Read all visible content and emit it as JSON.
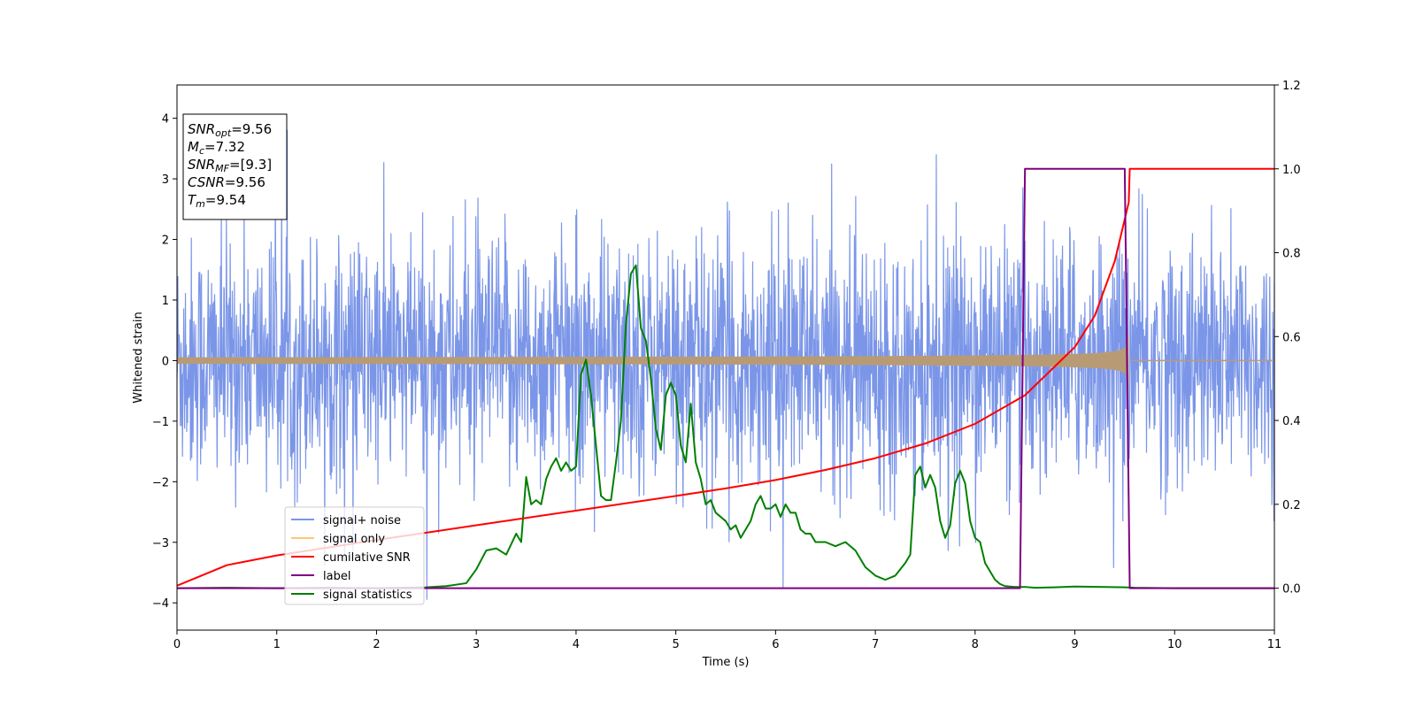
{
  "colors": {
    "signal_noise": "#7b96e8",
    "signal_only": "#ffc773",
    "signal_only_overlap": "#b89b75",
    "cumulative_snr": "#ff0000",
    "label": "#800080",
    "signal_statistics": "#008000"
  },
  "info_box": {
    "lines": [
      {
        "sym": "SNR",
        "sub": "opt",
        "val": "=9.56"
      },
      {
        "sym": "M",
        "sub": "c",
        "val": "=7.32"
      },
      {
        "sym": "SNR",
        "sub": "MF",
        "val": "=[9.3]"
      },
      {
        "sym": "CSNR",
        "sub": "",
        "val": "=9.56"
      },
      {
        "sym": "T",
        "sub": "m",
        "val": "=9.54"
      }
    ]
  },
  "chart_data": {
    "type": "line",
    "xlabel": "Time (s)",
    "ylabel": "Whitened strain",
    "xlim": [
      0,
      11
    ],
    "ylim_left": [
      -4.45,
      4.55
    ],
    "ylim_right": [
      -0.1,
      1.2
    ],
    "x_ticks": [
      "0",
      "1",
      "2",
      "3",
      "4",
      "5",
      "6",
      "7",
      "8",
      "9",
      "10",
      "11"
    ],
    "y_ticks_left": [
      "−4",
      "−3",
      "−2",
      "−1",
      "0",
      "1",
      "2",
      "3",
      "4"
    ],
    "y_ticks_right": [
      "0.0",
      "0.2",
      "0.4",
      "0.6",
      "0.8",
      "1.0",
      "1.2"
    ],
    "legend": {
      "position": "lower-left",
      "entries": [
        {
          "name": "signal+ noise",
          "color": "#7b96e8"
        },
        {
          "name": "signal only",
          "color": "#ffc773"
        },
        {
          "name": "cumilative SNR",
          "color": "#ff0000"
        },
        {
          "name": "label",
          "color": "#800080"
        },
        {
          "name": "signal statistics",
          "color": "#008000"
        }
      ]
    },
    "series": [
      {
        "name": "signal+ noise",
        "axis": "left",
        "kind": "noise",
        "sigma": 1.0,
        "x_range": [
          0,
          11
        ]
      },
      {
        "name": "signal only",
        "axis": "left",
        "kind": "chirp",
        "amplitude_start": 0.03,
        "amplitude_at_merger": 0.7,
        "merger_time": 9.54,
        "ringdown_end": 9.56
      },
      {
        "name": "cumilative SNR",
        "axis": "right",
        "x": [
          0,
          0.5,
          1,
          2,
          3,
          4,
          5,
          5.5,
          6,
          6.5,
          7,
          7.5,
          8,
          8.5,
          9,
          9.2,
          9.4,
          9.54,
          9.55,
          11
        ],
        "y": [
          0.006,
          0.055,
          0.078,
          0.115,
          0.15,
          0.185,
          0.22,
          0.238,
          0.258,
          0.282,
          0.31,
          0.345,
          0.392,
          0.46,
          0.575,
          0.65,
          0.78,
          0.92,
          1.0,
          1.0
        ]
      },
      {
        "name": "label",
        "axis": "right",
        "x": [
          0,
          8.45,
          8.5,
          9.5,
          9.55,
          11
        ],
        "y": [
          0,
          0,
          1,
          1,
          0,
          0
        ]
      },
      {
        "name": "signal statistics",
        "axis": "right",
        "x": [
          0,
          0.5,
          1,
          1.5,
          2,
          2.5,
          2.7,
          2.9,
          3.0,
          3.1,
          3.2,
          3.3,
          3.4,
          3.45,
          3.5,
          3.55,
          3.6,
          3.65,
          3.7,
          3.75,
          3.8,
          3.85,
          3.9,
          3.95,
          4.0,
          4.05,
          4.1,
          4.15,
          4.2,
          4.25,
          4.3,
          4.35,
          4.4,
          4.45,
          4.5,
          4.55,
          4.6,
          4.65,
          4.7,
          4.75,
          4.8,
          4.85,
          4.9,
          4.95,
          5.0,
          5.05,
          5.1,
          5.15,
          5.2,
          5.25,
          5.3,
          5.35,
          5.4,
          5.45,
          5.5,
          5.55,
          5.6,
          5.65,
          5.7,
          5.75,
          5.8,
          5.85,
          5.9,
          5.95,
          6.0,
          6.05,
          6.1,
          6.15,
          6.2,
          6.25,
          6.3,
          6.35,
          6.4,
          6.5,
          6.6,
          6.7,
          6.8,
          6.9,
          7.0,
          7.1,
          7.2,
          7.3,
          7.35,
          7.4,
          7.45,
          7.5,
          7.55,
          7.6,
          7.65,
          7.7,
          7.75,
          7.8,
          7.85,
          7.9,
          7.95,
          8.0,
          8.05,
          8.1,
          8.15,
          8.2,
          8.25,
          8.3,
          8.4,
          8.5,
          8.6,
          8.8,
          9.0,
          9.3,
          9.5,
          9.6,
          10,
          11
        ],
        "y": [
          0,
          0.001,
          0,
          0.001,
          0,
          0.002,
          0.005,
          0.012,
          0.045,
          0.09,
          0.095,
          0.08,
          0.13,
          0.11,
          0.265,
          0.2,
          0.21,
          0.2,
          0.26,
          0.29,
          0.31,
          0.28,
          0.3,
          0.28,
          0.29,
          0.51,
          0.545,
          0.46,
          0.34,
          0.22,
          0.21,
          0.21,
          0.3,
          0.4,
          0.63,
          0.75,
          0.77,
          0.62,
          0.59,
          0.5,
          0.38,
          0.33,
          0.46,
          0.49,
          0.46,
          0.34,
          0.3,
          0.44,
          0.3,
          0.26,
          0.2,
          0.21,
          0.18,
          0.17,
          0.16,
          0.14,
          0.15,
          0.12,
          0.14,
          0.16,
          0.2,
          0.22,
          0.19,
          0.19,
          0.2,
          0.17,
          0.2,
          0.18,
          0.18,
          0.14,
          0.13,
          0.13,
          0.11,
          0.11,
          0.1,
          0.11,
          0.09,
          0.05,
          0.03,
          0.02,
          0.03,
          0.06,
          0.08,
          0.27,
          0.29,
          0.24,
          0.27,
          0.24,
          0.16,
          0.12,
          0.15,
          0.25,
          0.28,
          0.25,
          0.16,
          0.12,
          0.11,
          0.06,
          0.04,
          0.02,
          0.01,
          0.005,
          0.003,
          0.003,
          0.001,
          0.002,
          0.004,
          0.003,
          0.002,
          0.001,
          0.0,
          0.0
        ]
      }
    ]
  }
}
